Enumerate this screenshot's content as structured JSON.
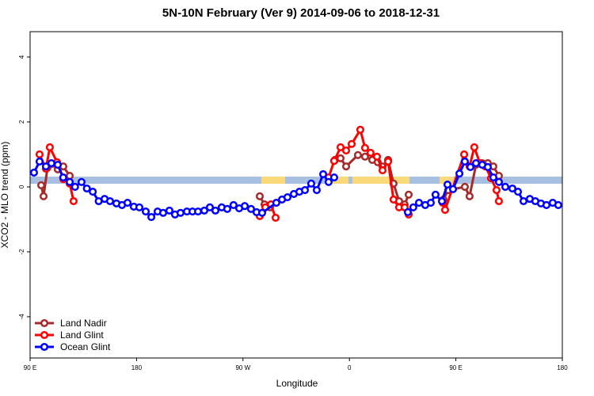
{
  "chart_data": {
    "type": "line",
    "title": "5N-10N February (Ver 9)   2014-09-06 to 2018-12-31",
    "x_label": "Longitude",
    "y_label": "XCO2 - MLO trend (ppm)",
    "xlim": [
      90,
      540
    ],
    "ylim": [
      -5.27,
      4.78
    ],
    "xticks": [
      {
        "value": 90,
        "label": "90 E"
      },
      {
        "value": 180,
        "label": "180"
      },
      {
        "value": 270,
        "label": "90 W"
      },
      {
        "value": 360,
        "label": "0"
      },
      {
        "value": 450,
        "label": "90 E"
      },
      {
        "value": 540,
        "label": "180"
      }
    ],
    "yticks": [
      -4,
      -2,
      0,
      2,
      4
    ],
    "legend": "bottom-left",
    "series": [
      {
        "name": "Land Nadir",
        "color": "#a52a2a",
        "x": [
          99.4,
          101.4,
          104.7,
          108.7,
          113.4,
          118.1,
          123.5,
          200,
          284.2,
          288.2,
          292.9,
          320,
          347.8,
          352.5,
          357.2,
          367.2,
          373.2,
          379.3,
          383.9,
          388,
          392.7,
          397.3,
          402,
          406.7,
          410.1,
          425,
          439.5,
          443.5,
          457.6,
          461.6,
          467,
          472.3,
          477,
          481.7,
          486.4
        ],
        "values": [
          0.05,
          -0.29,
          0.59,
          0.71,
          0.54,
          0.63,
          0.34,
          null,
          -0.29,
          -0.54,
          -0.63,
          null,
          0.83,
          0.88,
          0.63,
          0.98,
          0.93,
          0.83,
          0.76,
          0.63,
          0.83,
          0.1,
          -0.44,
          -0.54,
          -0.24,
          null,
          -0.39,
          -0.1,
          0,
          -0.29,
          0.68,
          0.73,
          0.73,
          0.63,
          0.34
        ]
      },
      {
        "name": "Land Glint",
        "color": "#ff0000",
        "x": [
          98,
          103.4,
          106.7,
          112.8,
          118.1,
          123.5,
          126.8,
          200,
          284.2,
          288.9,
          293.6,
          297.6,
          320,
          342.4,
          347.1,
          352.5,
          357.2,
          361.9,
          369.2,
          373.2,
          377.9,
          383.3,
          388,
          392.7,
          397.3,
          402,
          406.7,
          410.1,
          425,
          438.9,
          440.9,
          457,
          461.6,
          465.6,
          470.3,
          475,
          479.7,
          484.4,
          486.4
        ],
        "values": [
          1.0,
          0.56,
          1.22,
          0.76,
          0.24,
          0.1,
          -0.44,
          null,
          -0.9,
          -0.63,
          -0.54,
          -0.95,
          null,
          0.29,
          0.8,
          1.22,
          1.12,
          1.32,
          1.76,
          1.2,
          1.05,
          0.93,
          0.51,
          0.78,
          -0.39,
          -0.63,
          -0.63,
          -0.85,
          null,
          -0.49,
          -0.71,
          1.0,
          0.63,
          1.22,
          0.73,
          0.63,
          0.27,
          -0.1,
          -0.44
        ]
      },
      {
        "name": "Ocean Glint",
        "color": "#0000ff",
        "x": [
          93.3,
          98,
          103.4,
          108,
          113.4,
          118,
          123.5,
          128,
          133.5,
          138,
          143,
          148,
          153,
          157.6,
          163,
          167.7,
          172.4,
          177.7,
          182.4,
          187.8,
          192.5,
          197.8,
          202.5,
          207.8,
          212.5,
          217.2,
          222.6,
          227.3,
          232,
          237.3,
          242,
          246.7,
          252,
          256.7,
          262,
          266.8,
          271.5,
          276.8,
          281.5,
          286.2,
          298.2,
          303,
          307.6,
          313,
          317.7,
          322.4,
          327.7,
          332.4,
          337.8,
          342.4,
          347.1,
          380,
          409.4,
          414,
          418.8,
          424.1,
          428.8,
          432.8,
          438.2,
          442.9,
          447.6,
          453,
          457.6,
          462.3,
          467,
          472.3,
          477,
          481.7,
          486.4,
          491.8,
          497.8,
          502.5,
          507.2,
          512.5,
          517.2,
          521.9,
          526.6,
          531.9,
          536.6
        ],
        "values": [
          0.44,
          0.78,
          0.63,
          0.73,
          0.68,
          0.29,
          0.15,
          0,
          0.15,
          -0.05,
          -0.15,
          -0.44,
          -0.37,
          -0.44,
          -0.51,
          -0.56,
          -0.49,
          -0.61,
          -0.63,
          -0.76,
          -0.93,
          -0.76,
          -0.8,
          -0.73,
          -0.85,
          -0.8,
          -0.76,
          -0.76,
          -0.76,
          -0.73,
          -0.63,
          -0.73,
          -0.63,
          -0.68,
          -0.56,
          -0.66,
          -0.59,
          -0.68,
          -0.78,
          -0.8,
          -0.49,
          -0.39,
          -0.32,
          -0.22,
          -0.15,
          -0.1,
          0.1,
          -0.1,
          0.39,
          0.15,
          0.29,
          null,
          -0.78,
          -0.63,
          -0.49,
          -0.56,
          -0.49,
          -0.24,
          -0.44,
          0.07,
          -0.07,
          0.41,
          0.78,
          0.61,
          0.73,
          0.68,
          0.61,
          0.29,
          0.15,
          0,
          -0.05,
          -0.15,
          -0.44,
          -0.37,
          -0.44,
          -0.51,
          -0.56,
          -0.49,
          -0.56
        ]
      }
    ]
  }
}
